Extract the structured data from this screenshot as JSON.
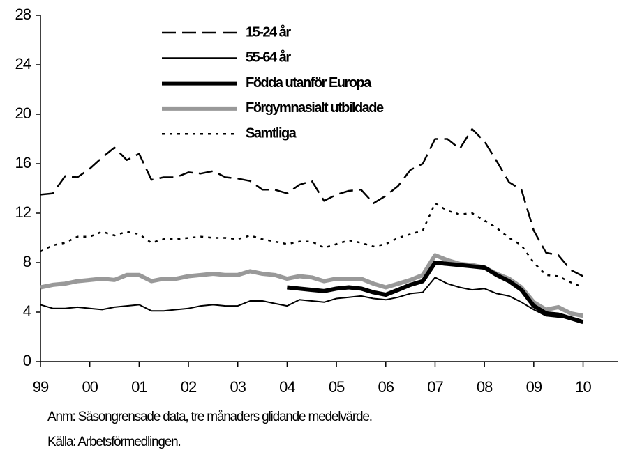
{
  "chart_data": {
    "type": "line",
    "x": [
      1999,
      1999.25,
      1999.5,
      1999.75,
      2000,
      2000.25,
      2000.5,
      2000.75,
      2001,
      2001.25,
      2001.5,
      2001.75,
      2002,
      2002.25,
      2002.5,
      2002.75,
      2003,
      2003.25,
      2003.5,
      2003.75,
      2004,
      2004.25,
      2004.5,
      2004.75,
      2005,
      2005.25,
      2005.5,
      2005.75,
      2006,
      2006.25,
      2006.5,
      2006.75,
      2007,
      2007.25,
      2007.5,
      2007.75,
      2008,
      2008.25,
      2008.5,
      2008.75,
      2009,
      2009.25,
      2009.5,
      2009.75,
      2010
    ],
    "xlim": [
      1999,
      2010.7
    ],
    "xticks": [
      {
        "value": 1999,
        "label": "99"
      },
      {
        "value": 2000,
        "label": "00"
      },
      {
        "value": 2001,
        "label": "01"
      },
      {
        "value": 2002,
        "label": "02"
      },
      {
        "value": 2003,
        "label": "03"
      },
      {
        "value": 2004,
        "label": "04"
      },
      {
        "value": 2005,
        "label": "05"
      },
      {
        "value": 2006,
        "label": "06"
      },
      {
        "value": 2007,
        "label": "07"
      },
      {
        "value": 2008,
        "label": "08"
      },
      {
        "value": 2009,
        "label": "09"
      },
      {
        "value": 2010,
        "label": "10"
      }
    ],
    "ylim": [
      0,
      28
    ],
    "yticks": [
      0,
      4,
      8,
      12,
      16,
      20,
      24,
      28
    ],
    "series": [
      {
        "name": "15-24 år",
        "color": "#000000",
        "line_style": "dashed",
        "line_width": 2.5,
        "values": [
          13.5,
          13.6,
          15.0,
          14.9,
          15.6,
          16.5,
          17.3,
          16.3,
          16.8,
          14.7,
          14.9,
          14.9,
          15.3,
          15.2,
          15.4,
          14.9,
          14.8,
          14.6,
          13.9,
          13.9,
          13.6,
          14.3,
          14.6,
          13.0,
          13.5,
          13.8,
          13.9,
          12.8,
          13.4,
          14.2,
          15.5,
          16.0,
          18.0,
          18.0,
          17.2,
          18.8,
          17.8,
          16.2,
          14.5,
          13.9,
          10.6,
          8.8,
          8.6,
          7.4,
          6.9
        ]
      },
      {
        "name": "55-64 år",
        "color": "#000000",
        "line_style": "solid",
        "line_width": 2,
        "values": [
          4.6,
          4.3,
          4.3,
          4.4,
          4.3,
          4.2,
          4.4,
          4.5,
          4.6,
          4.1,
          4.1,
          4.2,
          4.3,
          4.5,
          4.6,
          4.5,
          4.5,
          4.9,
          4.9,
          4.7,
          4.5,
          5.0,
          4.9,
          4.8,
          5.1,
          5.2,
          5.3,
          5.1,
          5.0,
          5.2,
          5.5,
          5.6,
          6.8,
          6.3,
          6.0,
          5.8,
          5.9,
          5.5,
          5.3,
          4.8,
          4.2,
          3.7,
          3.6,
          3.5,
          3.3
        ]
      },
      {
        "name": "Födda utanför Europa",
        "color": "#000000",
        "line_style": "solid",
        "line_width": 6,
        "values": [
          null,
          null,
          null,
          null,
          null,
          null,
          null,
          null,
          null,
          null,
          null,
          null,
          null,
          null,
          null,
          null,
          null,
          null,
          null,
          null,
          6.0,
          5.9,
          5.8,
          5.7,
          5.9,
          6.0,
          5.9,
          5.6,
          5.4,
          5.8,
          6.2,
          6.5,
          8.0,
          7.9,
          7.8,
          7.7,
          7.6,
          7.0,
          6.5,
          5.8,
          4.5,
          3.9,
          3.8,
          3.5,
          3.2
        ]
      },
      {
        "name": "Förgymnasialt utbildade",
        "color": "#999999",
        "line_style": "solid",
        "line_width": 6,
        "values": [
          6.0,
          6.2,
          6.3,
          6.5,
          6.6,
          6.7,
          6.6,
          7.0,
          7.0,
          6.5,
          6.7,
          6.7,
          6.9,
          7.0,
          7.1,
          7.0,
          7.0,
          7.3,
          7.1,
          7.0,
          6.7,
          6.9,
          6.8,
          6.5,
          6.7,
          6.7,
          6.7,
          6.3,
          6.0,
          6.3,
          6.6,
          7.0,
          8.6,
          8.2,
          7.9,
          7.8,
          7.6,
          7.1,
          6.7,
          6.0,
          4.8,
          4.2,
          4.4,
          3.9,
          3.7
        ]
      },
      {
        "name": "Samtliga",
        "color": "#000000",
        "line_style": "dotted",
        "line_width": 2.5,
        "values": [
          8.9,
          9.4,
          9.6,
          10.1,
          10.1,
          10.5,
          10.2,
          10.5,
          10.3,
          9.6,
          9.9,
          9.9,
          10.0,
          10.1,
          10.0,
          10.0,
          9.9,
          10.2,
          9.9,
          9.7,
          9.5,
          9.7,
          9.7,
          9.2,
          9.5,
          9.8,
          9.6,
          9.3,
          9.5,
          10.0,
          10.3,
          10.6,
          12.8,
          12.2,
          11.9,
          12.0,
          11.4,
          10.8,
          10.0,
          9.4,
          8.0,
          7.0,
          6.9,
          6.4,
          6.0
        ]
      }
    ],
    "legend": "upper-left",
    "grid": false,
    "notes": [
      "Anm: Säsongrensade data, tre månaders glidande medelvärde.",
      "Källa: Arbetsförmedlingen."
    ]
  }
}
